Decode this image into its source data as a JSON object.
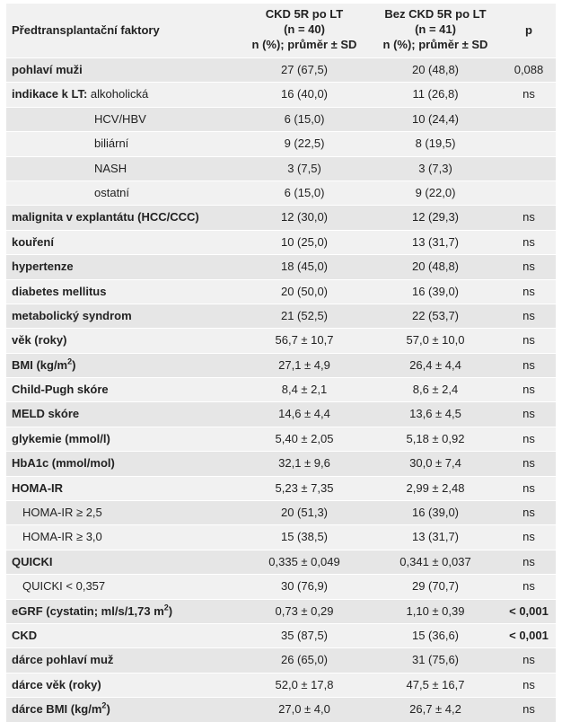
{
  "header": {
    "factor": "Předtransplantační faktory",
    "col1": [
      "CKD 5R po LT",
      "(n = 40)",
      "n (%); průměr ± SD"
    ],
    "col2": [
      "Bez CKD 5R po LT",
      "(n = 41)",
      "n (%); průměr ± SD"
    ],
    "p": "p"
  },
  "rows": [
    {
      "bold": "pohlaví muži",
      "rest": "",
      "indent": 0,
      "v1": "27 (67,5)",
      "v2": "20 (48,8)",
      "p": "0,088",
      "pbold": false
    },
    {
      "bold": "indikace k LT:",
      "rest": " alkoholická",
      "indent": 0,
      "v1": "16 (40,0)",
      "v2": "11 (26,8)",
      "p": "ns",
      "pbold": false
    },
    {
      "bold": "",
      "rest": "HCV/HBV",
      "indent": 1,
      "v1": "6 (15,0)",
      "v2": "10 (24,4)",
      "p": "",
      "pbold": false
    },
    {
      "bold": "",
      "rest": "biliární",
      "indent": 1,
      "v1": "9 (22,5)",
      "v2": "8 (19,5)",
      "p": "",
      "pbold": false
    },
    {
      "bold": "",
      "rest": "NASH",
      "indent": 1,
      "v1": "3 (7,5)",
      "v2": "3 (7,3)",
      "p": "",
      "pbold": false
    },
    {
      "bold": "",
      "rest": "ostatní",
      "indent": 1,
      "v1": "6 (15,0)",
      "v2": "9 (22,0)",
      "p": "",
      "pbold": false
    },
    {
      "bold": "malignita v explantátu (HCC/CCC)",
      "rest": "",
      "indent": 0,
      "v1": "12 (30,0)",
      "v2": "12 (29,3)",
      "p": "ns",
      "pbold": false
    },
    {
      "bold": "kouření",
      "rest": "",
      "indent": 0,
      "v1": "10 (25,0)",
      "v2": "13 (31,7)",
      "p": "ns",
      "pbold": false
    },
    {
      "bold": "hypertenze",
      "rest": "",
      "indent": 0,
      "v1": "18 (45,0)",
      "v2": "20 (48,8)",
      "p": "ns",
      "pbold": false
    },
    {
      "bold": "diabetes mellitus",
      "rest": "",
      "indent": 0,
      "v1": "20 (50,0)",
      "v2": "16 (39,0)",
      "p": "ns",
      "pbold": false
    },
    {
      "bold": "metabolický syndrom",
      "rest": "",
      "indent": 0,
      "v1": "21 (52,5)",
      "v2": "22 (53,7)",
      "p": "ns",
      "pbold": false
    },
    {
      "bold": "věk (roky)",
      "rest": "",
      "indent": 0,
      "v1": "56,7 ± 10,7",
      "v2": "57,0 ± 10,0",
      "p": "ns",
      "pbold": false
    },
    {
      "bold": "BMI (kg/m",
      "sup": "2",
      "bold2": ")",
      "rest": "",
      "indent": 0,
      "v1": "27,1 ± 4,9",
      "v2": "26,4 ± 4,4",
      "p": "ns",
      "pbold": false
    },
    {
      "bold": "Child-Pugh skóre",
      "rest": "",
      "indent": 0,
      "v1": "8,4 ± 2,1",
      "v2": "8,6 ± 2,4",
      "p": "ns",
      "pbold": false
    },
    {
      "bold": "MELD skóre",
      "rest": "",
      "indent": 0,
      "v1": "14,6 ± 4,4",
      "v2": "13,6 ± 4,5",
      "p": "ns",
      "pbold": false
    },
    {
      "bold": "glykemie (mmol/l)",
      "rest": "",
      "indent": 0,
      "v1": "5,40 ± 2,05",
      "v2": "5,18 ± 0,92",
      "p": "ns",
      "pbold": false
    },
    {
      "bold": "HbA1c (mmol/mol)",
      "rest": "",
      "indent": 0,
      "v1": "32,1 ± 9,6",
      "v2": "30,0 ± 7,4",
      "p": "ns",
      "pbold": false
    },
    {
      "bold": "HOMA-IR",
      "rest": "",
      "indent": 0,
      "v1": "5,23 ± 7,35",
      "v2": "2,99 ± 2,48",
      "p": "ns",
      "pbold": false
    },
    {
      "bold": "",
      "rest": "HOMA-IR ≥ 2,5",
      "indent": 2,
      "v1": "20 (51,3)",
      "v2": "16 (39,0)",
      "p": "ns",
      "pbold": false
    },
    {
      "bold": "",
      "rest": "HOMA-IR ≥ 3,0",
      "indent": 2,
      "v1": "15 (38,5)",
      "v2": "13 (31,7)",
      "p": "ns",
      "pbold": false
    },
    {
      "bold": "QUICKI",
      "rest": "",
      "indent": 0,
      "v1": "0,335 ± 0,049",
      "v2": "0,341 ± 0,037",
      "p": "ns",
      "pbold": false
    },
    {
      "bold": "",
      "rest": "QUICKI < 0,357",
      "indent": 2,
      "v1": "30 (76,9)",
      "v2": "29 (70,7)",
      "p": "ns",
      "pbold": false
    },
    {
      "bold": "eGRF (cystatin; ml/s/1,73 m",
      "sup": "2",
      "bold2": ")",
      "rest": "",
      "indent": 0,
      "v1": "0,73 ± 0,29",
      "v2": "1,10 ± 0,39",
      "p": "< 0,001",
      "pbold": true
    },
    {
      "bold": "CKD",
      "rest": "",
      "indent": 0,
      "v1": "35 (87,5)",
      "v2": "15 (36,6)",
      "p": "< 0,001",
      "pbold": true
    },
    {
      "bold": "dárce pohlaví muž",
      "rest": "",
      "indent": 0,
      "v1": "26 (65,0)",
      "v2": "31 (75,6)",
      "p": "ns",
      "pbold": false
    },
    {
      "bold": "dárce věk (roky)",
      "rest": "",
      "indent": 0,
      "v1": "52,0 ± 17,8",
      "v2": "47,5 ± 16,7",
      "p": "ns",
      "pbold": false
    },
    {
      "bold": "dárce BMI (kg/m",
      "sup": "2",
      "bold2": ")",
      "rest": "",
      "indent": 0,
      "v1": "27,0 ± 4,0",
      "v2": "26,7 ± 4,2",
      "p": "ns",
      "pbold": false
    }
  ]
}
